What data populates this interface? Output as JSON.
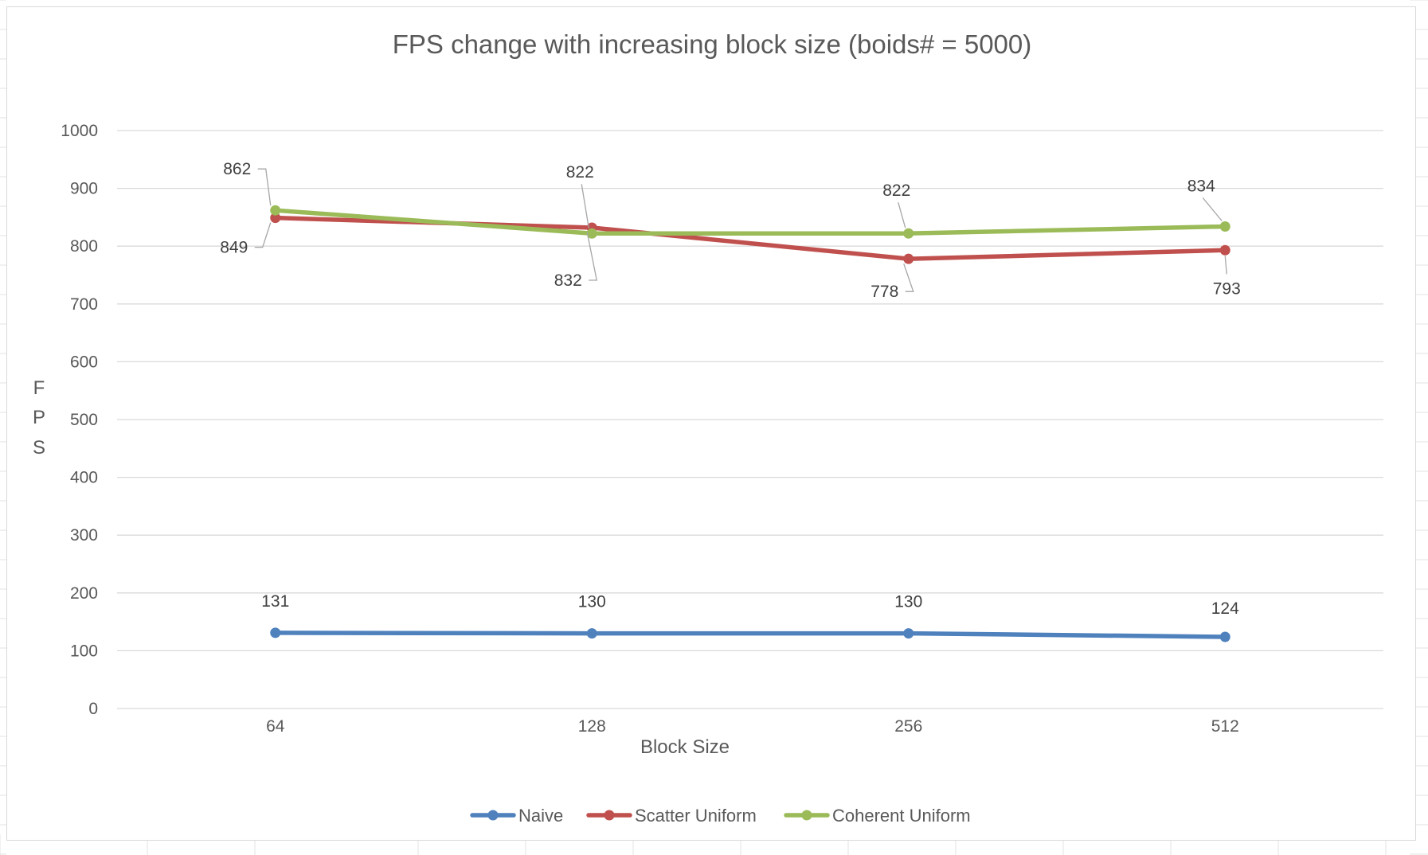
{
  "chart_data": {
    "type": "line",
    "title": "FPS change with increasing block size (boids# = 5000)",
    "xlabel": "Block Size",
    "ylabel": "FPS",
    "ylabel_letters": [
      "F",
      "P",
      "S"
    ],
    "categories": [
      "64",
      "128",
      "256",
      "512"
    ],
    "ylim": [
      0,
      1000
    ],
    "yticks": [
      0,
      100,
      200,
      300,
      400,
      500,
      600,
      700,
      800,
      900,
      1000
    ],
    "grid": true,
    "legend_position": "bottom",
    "series": [
      {
        "name": "Naive",
        "color": "#4f81bd",
        "values": [
          131,
          130,
          130,
          124
        ]
      },
      {
        "name": "Scatter Uniform",
        "color": "#c0504d",
        "values": [
          849,
          832,
          778,
          793
        ]
      },
      {
        "name": "Coherent Uniform",
        "color": "#9bbb59",
        "values": [
          862,
          822,
          822,
          834
        ]
      }
    ]
  }
}
